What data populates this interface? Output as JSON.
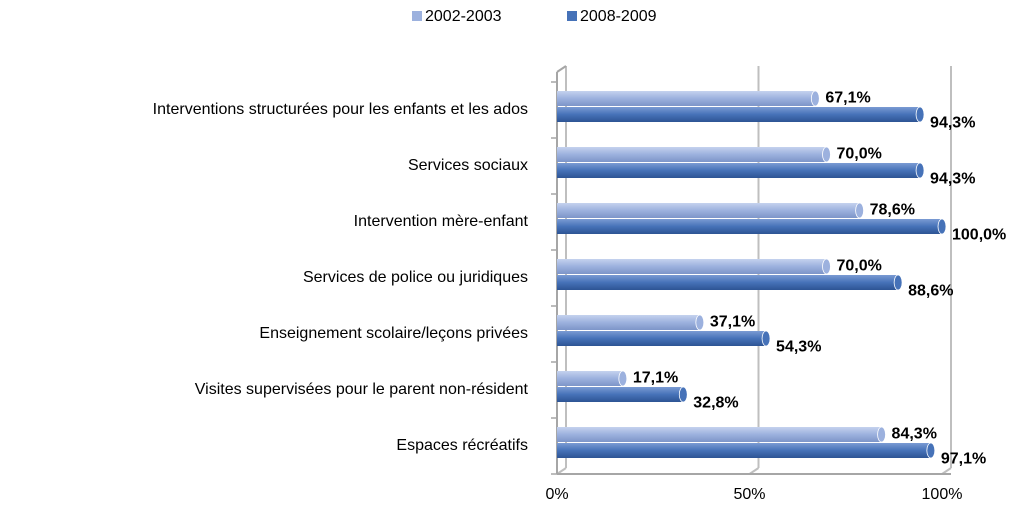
{
  "chart_data": {
    "type": "bar",
    "orientation": "horizontal",
    "categories": [
      "Interventions structurées pour les enfants et les ados",
      "Services sociaux",
      "Intervention mère-enfant",
      "Services de police ou juridiques",
      "Enseignement scolaire/leçons privées",
      "Visites supervisées pour le parent non-résident",
      "Espaces récréatifs"
    ],
    "series": [
      {
        "name": "2002-2003",
        "color": "#9cb1de",
        "values": [
          67.1,
          70.0,
          78.6,
          70.0,
          37.1,
          17.1,
          84.3
        ],
        "value_labels": [
          "67,1%",
          "70,0%",
          "78,6%",
          "70,0%",
          "37,1%",
          "17,1%",
          "84,3%"
        ]
      },
      {
        "name": "2008-2009",
        "color": "#4672b8",
        "values": [
          94.3,
          94.3,
          100.0,
          88.6,
          54.3,
          32.8,
          97.1
        ],
        "value_labels": [
          "94,3%",
          "94,3%",
          "100,0%",
          "88,6%",
          "54,3%",
          "32,8%",
          "97,1%"
        ]
      }
    ],
    "xlim": [
      0,
      100
    ],
    "xticks": [
      {
        "value": 0,
        "label": "0%"
      },
      {
        "value": 50,
        "label": "50%"
      },
      {
        "value": 100,
        "label": "100%"
      }
    ],
    "grid": true,
    "legend": "top"
  }
}
